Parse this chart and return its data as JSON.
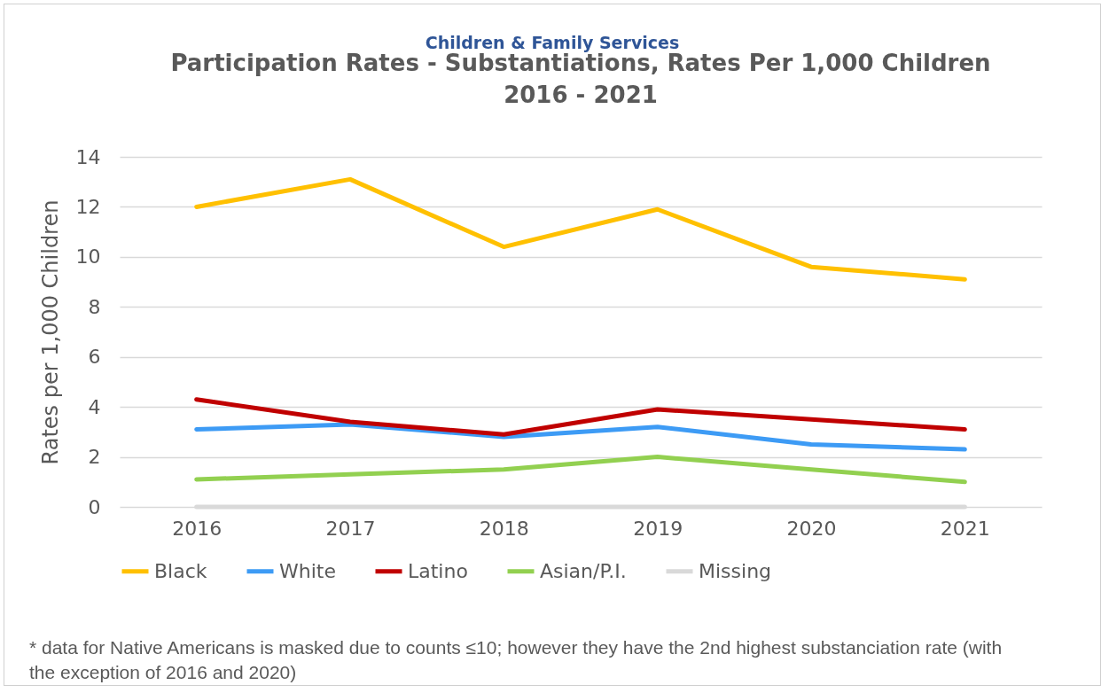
{
  "chart_data": {
    "type": "line",
    "subtitle": "Children & Family Services",
    "title": "Participation  Rates - Substantiations,  Rates Per 1,000 Children\n2016 - 2021",
    "ylabel": "Rates per 1,000 Children",
    "categories": [
      "2016",
      "2017",
      "2018",
      "2019",
      "2020",
      "2021"
    ],
    "series": [
      {
        "name": "Black",
        "color": "#ffc000",
        "values": [
          12.0,
          13.1,
          10.4,
          11.9,
          9.6,
          9.1
        ]
      },
      {
        "name": "White",
        "color": "#3d9bf5",
        "values": [
          3.1,
          3.3,
          2.8,
          3.2,
          2.5,
          2.3
        ]
      },
      {
        "name": "Latino",
        "color": "#c00000",
        "values": [
          4.3,
          3.4,
          2.9,
          3.9,
          3.5,
          3.1
        ]
      },
      {
        "name": "Asian/P.I.",
        "color": "#92d050",
        "values": [
          1.1,
          1.3,
          1.5,
          2.0,
          1.5,
          1.0
        ]
      },
      {
        "name": "Missing",
        "color": "#d9d9d9",
        "values": [
          0,
          0,
          0,
          0,
          0,
          0
        ]
      }
    ],
    "ylim": [
      0,
      14
    ],
    "yticks": [
      0,
      2,
      4,
      6,
      8,
      10,
      12,
      14
    ],
    "grid": "y",
    "legend": "bottom",
    "line_style": "solid",
    "marker": "none",
    "annotations": [
      "* data for Native Americans is masked due to counts ≤10; however they have the 2nd  highest substanciation rate (with the exception of 2016 and 2020)"
    ]
  }
}
